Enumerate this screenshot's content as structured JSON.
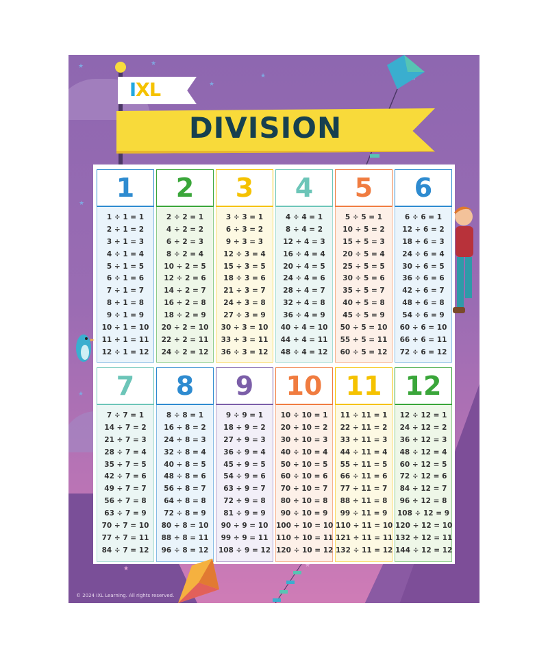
{
  "logo": "IXL",
  "title": "DIVISION",
  "copyright": "© 2024 IXL Learning. All rights reserved.",
  "tables": [
    {
      "divisor": "1",
      "color": "#2e8bd0",
      "bg": "#eaf4fb",
      "facts": [
        "1 ÷ 1 = 1",
        "2 ÷ 1 = 2",
        "3 ÷ 1 = 3",
        "4 ÷ 1 = 4",
        "5 ÷ 1 = 5",
        "6 ÷ 1 = 6",
        "7 ÷ 1 = 7",
        "8 ÷ 1 = 8",
        "9 ÷ 1 = 9",
        "10 ÷ 1 = 10",
        "11 ÷ 1 = 11",
        "12 ÷ 1 = 12"
      ]
    },
    {
      "divisor": "2",
      "color": "#3aa63a",
      "bg": "#eef7e8",
      "facts": [
        "2 ÷ 2 = 1",
        "4 ÷ 2 = 2",
        "6 ÷ 2 = 3",
        "8 ÷ 2 = 4",
        "10 ÷ 2 = 5",
        "12 ÷ 2 = 6",
        "14 ÷ 2 = 7",
        "16 ÷ 2 = 8",
        "18 ÷ 2 = 9",
        "20 ÷ 2 = 10",
        "22 ÷ 2 = 11",
        "24 ÷ 2 = 12"
      ]
    },
    {
      "divisor": "3",
      "color": "#f5c200",
      "bg": "#fdf9e3",
      "facts": [
        "3 ÷ 3 = 1",
        "6 ÷ 3 = 2",
        "9 ÷ 3 = 3",
        "12 ÷ 3 = 4",
        "15 ÷ 3 = 5",
        "18 ÷ 3 = 6",
        "21 ÷ 3 = 7",
        "24 ÷ 3 = 8",
        "27 ÷ 3 = 9",
        "30 ÷ 3 = 10",
        "33 ÷ 3 = 11",
        "36 ÷ 3 = 12"
      ]
    },
    {
      "divisor": "4",
      "color": "#6cc5b8",
      "bg": "#ebf6f4",
      "facts": [
        "4 ÷ 4 = 1",
        "8 ÷ 4 = 2",
        "12 ÷ 4 = 3",
        "16 ÷ 4 = 4",
        "20 ÷ 4 = 5",
        "24 ÷ 4 = 6",
        "28 ÷ 4 = 7",
        "32 ÷ 4 = 8",
        "36 ÷ 4 = 9",
        "40 ÷ 4 = 10",
        "44 ÷ 4 = 11",
        "48 ÷ 4 = 12"
      ]
    },
    {
      "divisor": "5",
      "color": "#f07c40",
      "bg": "#fdf0e8",
      "facts": [
        "5 ÷ 5 = 1",
        "10 ÷ 5 = 2",
        "15 ÷ 5 = 3",
        "20 ÷ 5 = 4",
        "25 ÷ 5 = 5",
        "30 ÷ 5 = 6",
        "35 ÷ 5 = 7",
        "40 ÷ 5 = 8",
        "45 ÷ 5 = 9",
        "50 ÷ 5 = 10",
        "55 ÷ 5 = 11",
        "60 ÷ 5 = 12"
      ]
    },
    {
      "divisor": "6",
      "color": "#2e8bd0",
      "bg": "#eaf4fb",
      "facts": [
        "6 ÷ 6 = 1",
        "12 ÷ 6 = 2",
        "18 ÷ 6 = 3",
        "24 ÷ 6 = 4",
        "30 ÷ 6 = 5",
        "36 ÷ 6 = 6",
        "42 ÷ 6 = 7",
        "48 ÷ 6 = 8",
        "54 ÷ 6 = 9",
        "60 ÷ 6 = 10",
        "66 ÷ 6 = 11",
        "72 ÷ 6 = 12"
      ]
    },
    {
      "divisor": "7",
      "color": "#6cc5b8",
      "bg": "#ebf6f4",
      "facts": [
        "7 ÷ 7 = 1",
        "14 ÷ 7 = 2",
        "21 ÷ 7 = 3",
        "28 ÷ 7 = 4",
        "35 ÷ 7 = 5",
        "42 ÷ 7 = 6",
        "49 ÷ 7 = 7",
        "56 ÷ 7 = 8",
        "63 ÷ 7 = 9",
        "70 ÷ 7 = 10",
        "77 ÷ 7 = 11",
        "84 ÷ 7 = 12"
      ]
    },
    {
      "divisor": "8",
      "color": "#2e8bd0",
      "bg": "#eaf4fb",
      "facts": [
        "8 ÷ 8 = 1",
        "16 ÷ 8 = 2",
        "24 ÷ 8 = 3",
        "32 ÷ 8 = 4",
        "40 ÷ 8 = 5",
        "48 ÷ 8 = 6",
        "56 ÷ 8 = 7",
        "64 ÷ 8 = 8",
        "72 ÷ 8 = 9",
        "80 ÷ 8 = 10",
        "88 ÷ 8 = 11",
        "96 ÷ 8 = 12"
      ]
    },
    {
      "divisor": "9",
      "color": "#7b5ea8",
      "bg": "#f2eff8",
      "facts": [
        "9 ÷ 9 = 1",
        "18 ÷ 9 = 2",
        "27 ÷ 9 = 3",
        "36 ÷ 9 = 4",
        "45 ÷ 9 = 5",
        "54 ÷ 9 = 6",
        "63 ÷ 9 = 7",
        "72 ÷ 9 = 8",
        "81 ÷ 9 = 9",
        "90 ÷ 9 = 10",
        "99 ÷ 9 = 11",
        "108 ÷ 9 = 12"
      ]
    },
    {
      "divisor": "10",
      "color": "#f07c40",
      "bg": "#fdf0e8",
      "facts": [
        "10 ÷ 10 = 1",
        "20 ÷ 10 = 2",
        "30 ÷ 10 = 3",
        "40 ÷ 10 = 4",
        "50 ÷ 10 = 5",
        "60 ÷ 10 = 6",
        "70 ÷ 10 = 7",
        "80 ÷ 10 = 8",
        "90 ÷ 10 = 9",
        "100 ÷ 10 = 10",
        "110 ÷ 10 = 11",
        "120 ÷ 10 = 12"
      ]
    },
    {
      "divisor": "11",
      "color": "#f5c200",
      "bg": "#fdf9e3",
      "facts": [
        "11 ÷ 11 = 1",
        "22 ÷ 11 = 2",
        "33 ÷ 11 = 3",
        "44 ÷ 11 = 4",
        "55 ÷ 11 = 5",
        "66 ÷ 11 = 6",
        "77 ÷ 11 = 7",
        "88 ÷ 11 = 8",
        "99 ÷ 11 = 9",
        "110 ÷ 11 = 10",
        "121 ÷ 11 = 11",
        "132 ÷ 11 = 12"
      ]
    },
    {
      "divisor": "12",
      "color": "#3aa63a",
      "bg": "#eef7e8",
      "facts": [
        "12 ÷ 12 = 1",
        "24 ÷ 12 = 2",
        "36 ÷ 12 = 3",
        "48 ÷ 12 = 4",
        "60 ÷ 12 = 5",
        "72 ÷ 12 = 6",
        "84 ÷ 12 = 7",
        "96 ÷ 12 = 8",
        "108 ÷ 12 = 9",
        "120 ÷ 12 = 10",
        "132 ÷ 12 = 11",
        "144 ÷ 12 = 12"
      ]
    }
  ]
}
